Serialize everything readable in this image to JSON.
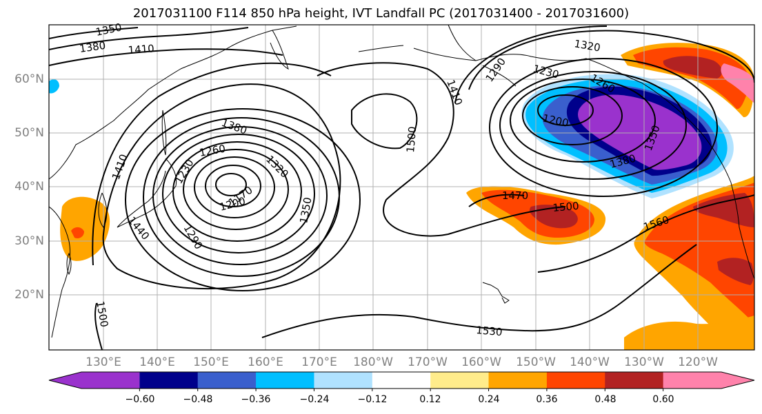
{
  "title": "2017031100 F114 850 hPa height, IVT Landfall PC (2017031400 - 2017031600)",
  "lat_labels": [
    "60°N",
    "50°N",
    "40°N",
    "30°N",
    "20°N"
  ],
  "lon_labels": [
    "130°E",
    "140°E",
    "150°E",
    "160°E",
    "170°E",
    "180°W",
    "170°W",
    "160°W",
    "150°W",
    "140°W",
    "130°W",
    "120°W"
  ],
  "contour_labels": [
    "1350",
    "1380",
    "1410",
    "1380",
    "1260",
    "1320",
    "1410",
    "1230",
    "1170",
    "1200",
    "1290",
    "1350",
    "1440",
    "1500",
    "1500",
    "1410",
    "1290",
    "1230",
    "1260",
    "1320",
    "1200",
    "1350",
    "1380",
    "1470",
    "1500",
    "1560",
    "1530"
  ],
  "colorbar": {
    "colors": [
      "#9a32cd",
      "#00008b",
      "#3a5fcd",
      "#00bfff",
      "#b0e2ff",
      "#ffffff",
      "#ffec8b",
      "#ffa500",
      "#ff4500",
      "#b22222",
      "#ff82ab"
    ],
    "tick_labels": [
      "−0.60",
      "−0.48",
      "−0.36",
      "−0.24",
      "−0.12",
      "0.12",
      "0.24",
      "0.36",
      "0.48",
      "0.60"
    ]
  }
}
